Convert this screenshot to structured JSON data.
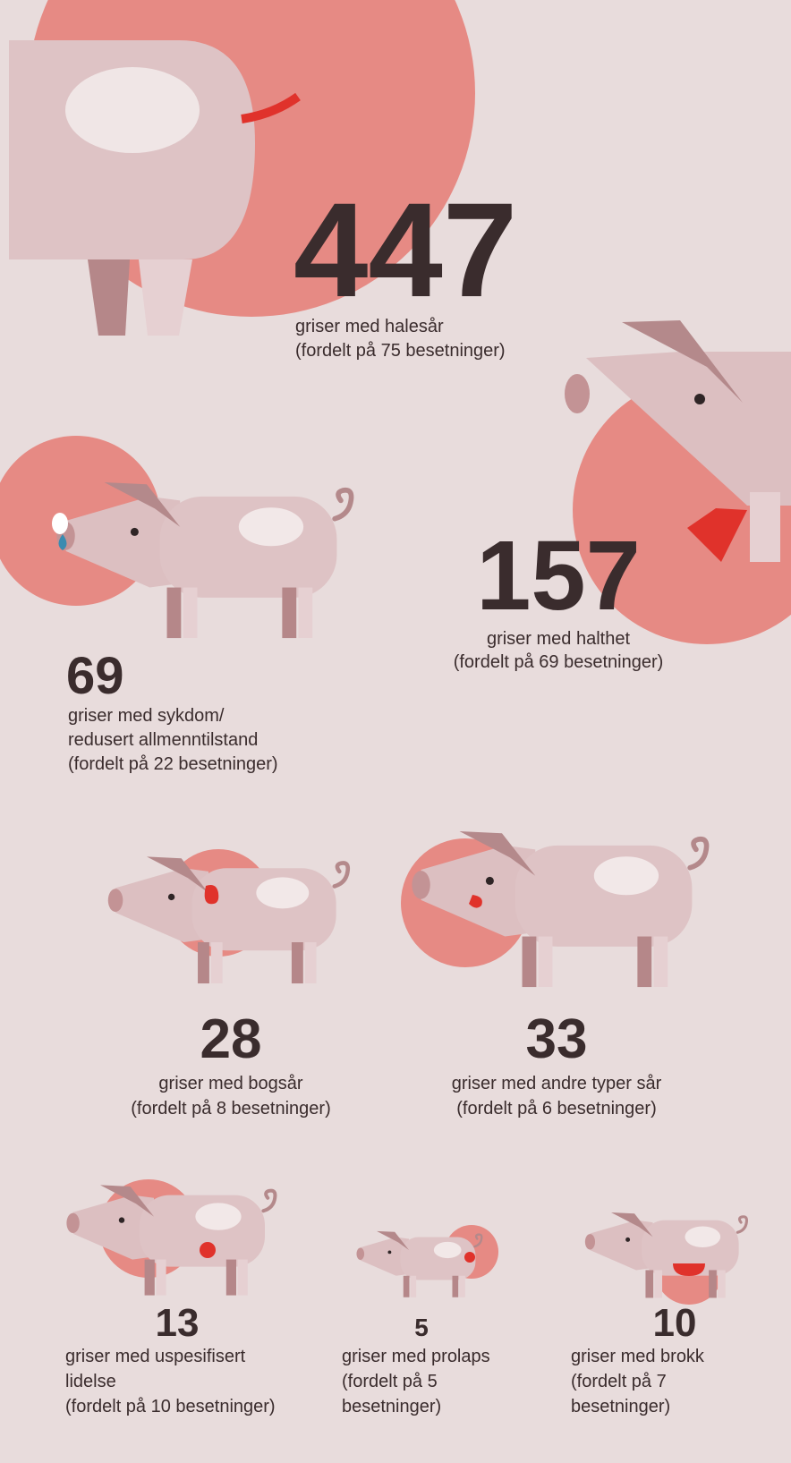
{
  "items": [
    {
      "number": 447,
      "lines": [
        "griser med halesår",
        "(fordelt på 75 besetninger)"
      ]
    },
    {
      "number": 157,
      "lines": [
        "griser med halthet",
        "(fordelt på 69 besetninger)"
      ]
    },
    {
      "number": 69,
      "lines": [
        "griser med sykdom/",
        "redusert allmenntilstand",
        "(fordelt på 22 besetninger)"
      ]
    },
    {
      "number": 28,
      "lines": [
        "griser med bogsår",
        "(fordelt på 8 besetninger)"
      ]
    },
    {
      "number": 33,
      "lines": [
        "griser med andre typer sår",
        "(fordelt på 6 besetninger)"
      ]
    },
    {
      "number": 13,
      "lines": [
        "griser med uspesifisert",
        "lidelse",
        "(fordelt på 10 besetninger)"
      ]
    },
    {
      "number": 5,
      "lines": [
        "griser med prolaps",
        "(fordelt på 5",
        "besetninger)"
      ]
    },
    {
      "number": 10,
      "lines": [
        "griser med brokk",
        "(fordelt på 7",
        "besetninger)"
      ]
    }
  ]
}
